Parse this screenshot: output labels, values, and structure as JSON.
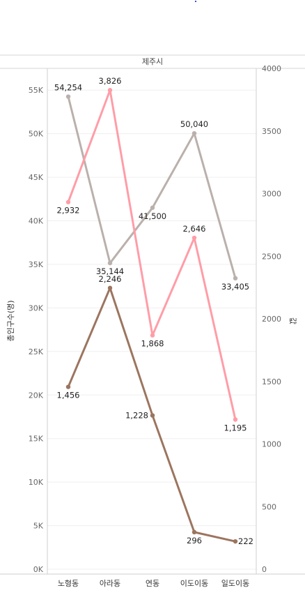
{
  "chart_data": {
    "type": "line",
    "title": "제주시",
    "categories": [
      "노형동",
      "아라동",
      "연동",
      "이도이동",
      "일도이동"
    ],
    "left_axis": {
      "label": "총인구수(명)",
      "min": 0,
      "max": 57500,
      "ticks": [
        0,
        5000,
        10000,
        15000,
        20000,
        25000,
        30000,
        35000,
        40000,
        45000,
        50000,
        55000
      ],
      "tick_labels": [
        "0K",
        "5K",
        "10K",
        "15K",
        "20K",
        "25K",
        "30K",
        "35K",
        "40K",
        "45K",
        "50K",
        "55K"
      ]
    },
    "right_axis": {
      "label": "값",
      "min": 0,
      "max": 4000,
      "ticks": [
        0,
        500,
        1000,
        1500,
        2000,
        2500,
        3000,
        3500,
        4000
      ],
      "tick_labels": [
        "0",
        "500",
        "1000",
        "1500",
        "2000",
        "2500",
        "3000",
        "3500",
        "4000"
      ]
    },
    "series": [
      {
        "axis": "left",
        "color": "#bab0ac",
        "values": [
          54254,
          35144,
          41500,
          50040,
          33405
        ],
        "labels": [
          "54,254",
          "35,144",
          "41,500",
          "50,040",
          "33,405"
        ],
        "label_pos": [
          "above",
          "below",
          "below",
          "above",
          "below"
        ]
      },
      {
        "axis": "right",
        "color": "#ff9da7",
        "values": [
          2932,
          3826,
          1868,
          2646,
          1195
        ],
        "labels": [
          "2,932",
          "3,826",
          "1,868",
          "2,646",
          "1,195"
        ],
        "label_pos": [
          "below",
          "above",
          "below",
          "above",
          "below"
        ]
      },
      {
        "axis": "right",
        "color": "#9c755f",
        "values": [
          1456,
          2246,
          1228,
          296,
          222
        ],
        "labels": [
          "1,456",
          "2,246",
          "1,228",
          "296",
          "222"
        ],
        "label_pos": [
          "below",
          "above",
          "left",
          "below",
          "right"
        ]
      }
    ],
    "grid": true
  }
}
